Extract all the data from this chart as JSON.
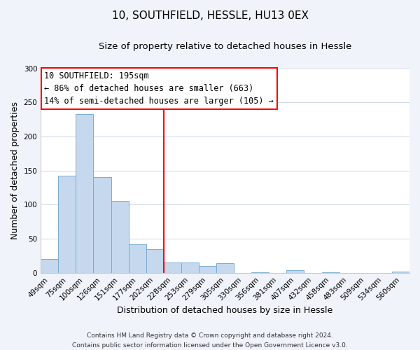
{
  "title": "10, SOUTHFIELD, HESSLE, HU13 0EX",
  "subtitle": "Size of property relative to detached houses in Hessle",
  "xlabel": "Distribution of detached houses by size in Hessle",
  "ylabel": "Number of detached properties",
  "bar_labels": [
    "49sqm",
    "75sqm",
    "100sqm",
    "126sqm",
    "151sqm",
    "177sqm",
    "202sqm",
    "228sqm",
    "253sqm",
    "279sqm",
    "305sqm",
    "330sqm",
    "356sqm",
    "381sqm",
    "407sqm",
    "432sqm",
    "458sqm",
    "483sqm",
    "509sqm",
    "534sqm",
    "560sqm"
  ],
  "bar_values": [
    20,
    143,
    233,
    140,
    106,
    42,
    35,
    15,
    15,
    10,
    14,
    0,
    1,
    0,
    4,
    0,
    1,
    0,
    0,
    0,
    2
  ],
  "bar_color": "#c5d8ed",
  "bar_edge_color": "#7aadd4",
  "vline_x": 6.5,
  "vline_color": "red",
  "annotation_lines": [
    "10 SOUTHFIELD: 195sqm",
    "← 86% of detached houses are smaller (663)",
    "14% of semi-detached houses are larger (105) →"
  ],
  "annotation_box_color": "white",
  "annotation_box_edge_color": "red",
  "ylim": [
    0,
    300
  ],
  "yticks": [
    0,
    50,
    100,
    150,
    200,
    250,
    300
  ],
  "footer_lines": [
    "Contains HM Land Registry data © Crown copyright and database right 2024.",
    "Contains public sector information licensed under the Open Government Licence v3.0."
  ],
  "figure_background_color": "#f0f4fa",
  "plot_background_color": "#ffffff",
  "title_fontsize": 11,
  "subtitle_fontsize": 9.5,
  "axis_label_fontsize": 9,
  "tick_fontsize": 7.5,
  "annotation_fontsize": 8.5,
  "footer_fontsize": 6.5,
  "grid_color": "#d0daea"
}
